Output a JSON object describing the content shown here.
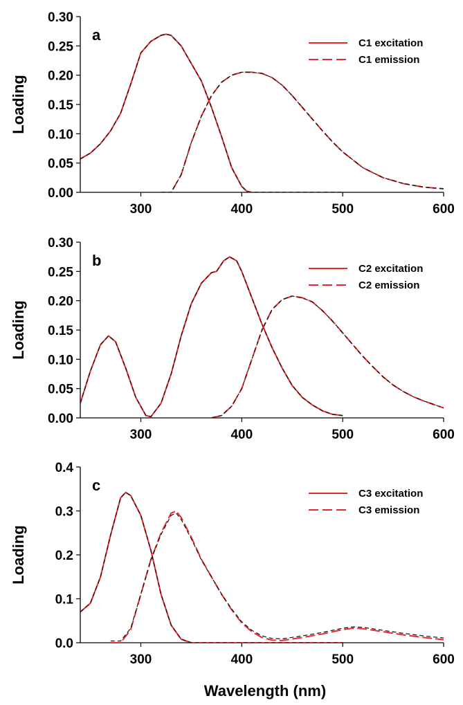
{
  "chart_data": [
    {
      "type": "line",
      "panel_label": "a",
      "ylabel": "Loading",
      "xlabel": "",
      "xlim": [
        240,
        600
      ],
      "ylim": [
        0,
        0.3
      ],
      "xticks": [
        "300",
        "400",
        "500",
        "600"
      ],
      "yticks": [
        "0.00",
        "0.05",
        "0.10",
        "0.15",
        "0.20",
        "0.25",
        "0.30"
      ],
      "legend_position": "top-right",
      "legend": [
        {
          "label": "C1 excitation",
          "style": "solid",
          "color": "#e8282b"
        },
        {
          "label": "C1 emission",
          "style": "dashed",
          "color": "#e8282b"
        }
      ],
      "series": [
        {
          "role": "excitation",
          "color": "#e8282b",
          "points": [
            [
              240,
              0.057
            ],
            [
              250,
              0.067
            ],
            [
              260,
              0.083
            ],
            [
              270,
              0.105
            ],
            [
              280,
              0.135
            ],
            [
              290,
              0.185
            ],
            [
              300,
              0.238
            ],
            [
              310,
              0.258
            ],
            [
              320,
              0.268
            ],
            [
              325,
              0.27
            ],
            [
              330,
              0.268
            ],
            [
              340,
              0.25
            ],
            [
              350,
              0.22
            ],
            [
              360,
              0.19
            ],
            [
              370,
              0.145
            ],
            [
              380,
              0.095
            ],
            [
              390,
              0.042
            ],
            [
              400,
              0.01
            ],
            [
              405,
              0.002
            ],
            [
              410,
              0.0
            ],
            [
              500,
              0.0
            ]
          ]
        },
        {
          "role": "emission",
          "color": "#e8282b",
          "points": [
            [
              320,
              0.0
            ],
            [
              330,
              0.0
            ],
            [
              340,
              0.03
            ],
            [
              350,
              0.085
            ],
            [
              360,
              0.13
            ],
            [
              370,
              0.165
            ],
            [
              380,
              0.188
            ],
            [
              390,
              0.2
            ],
            [
              400,
              0.205
            ],
            [
              410,
              0.205
            ],
            [
              420,
              0.203
            ],
            [
              430,
              0.196
            ],
            [
              440,
              0.183
            ],
            [
              450,
              0.165
            ],
            [
              460,
              0.145
            ],
            [
              470,
              0.125
            ],
            [
              480,
              0.105
            ],
            [
              490,
              0.086
            ],
            [
              500,
              0.069
            ],
            [
              520,
              0.042
            ],
            [
              540,
              0.025
            ],
            [
              560,
              0.015
            ],
            [
              580,
              0.009
            ],
            [
              600,
              0.006
            ]
          ]
        }
      ]
    },
    {
      "type": "line",
      "panel_label": "b",
      "ylabel": "Loading",
      "xlabel": "",
      "xlim": [
        240,
        600
      ],
      "ylim": [
        0,
        0.3
      ],
      "xticks": [
        "300",
        "400",
        "500",
        "600"
      ],
      "yticks": [
        "0.00",
        "0.05",
        "0.10",
        "0.15",
        "0.20",
        "0.25",
        "0.30"
      ],
      "legend_position": "top-right",
      "legend": [
        {
          "label": "C2 excitation",
          "style": "solid",
          "color": "#e8282b"
        },
        {
          "label": "C2 emission",
          "style": "dashed",
          "color": "#e8282b"
        }
      ],
      "series": [
        {
          "role": "excitation",
          "color": "#e8282b",
          "points": [
            [
              240,
              0.025
            ],
            [
              250,
              0.08
            ],
            [
              260,
              0.125
            ],
            [
              268,
              0.14
            ],
            [
              275,
              0.13
            ],
            [
              285,
              0.085
            ],
            [
              295,
              0.035
            ],
            [
              305,
              0.004
            ],
            [
              310,
              0.002
            ],
            [
              320,
              0.025
            ],
            [
              330,
              0.075
            ],
            [
              340,
              0.14
            ],
            [
              350,
              0.195
            ],
            [
              360,
              0.23
            ],
            [
              370,
              0.248
            ],
            [
              375,
              0.25
            ],
            [
              382,
              0.268
            ],
            [
              388,
              0.275
            ],
            [
              395,
              0.268
            ],
            [
              400,
              0.25
            ],
            [
              410,
              0.205
            ],
            [
              420,
              0.16
            ],
            [
              430,
              0.12
            ],
            [
              440,
              0.085
            ],
            [
              450,
              0.055
            ],
            [
              460,
              0.035
            ],
            [
              470,
              0.022
            ],
            [
              480,
              0.012
            ],
            [
              490,
              0.006
            ],
            [
              500,
              0.004
            ]
          ]
        },
        {
          "role": "emission",
          "color": "#e8282b",
          "points": [
            [
              370,
              0.0
            ],
            [
              380,
              0.004
            ],
            [
              390,
              0.02
            ],
            [
              400,
              0.05
            ],
            [
              410,
              0.1
            ],
            [
              420,
              0.15
            ],
            [
              430,
              0.185
            ],
            [
              440,
              0.202
            ],
            [
              450,
              0.208
            ],
            [
              460,
              0.205
            ],
            [
              470,
              0.198
            ],
            [
              480,
              0.183
            ],
            [
              490,
              0.165
            ],
            [
              500,
              0.145
            ],
            [
              510,
              0.125
            ],
            [
              520,
              0.105
            ],
            [
              530,
              0.087
            ],
            [
              540,
              0.07
            ],
            [
              550,
              0.056
            ],
            [
              560,
              0.045
            ],
            [
              570,
              0.036
            ],
            [
              580,
              0.029
            ],
            [
              590,
              0.023
            ],
            [
              600,
              0.017
            ]
          ]
        }
      ]
    },
    {
      "type": "line",
      "panel_label": "c",
      "ylabel": "Loading",
      "xlabel": "Wavelength (nm)",
      "xlim": [
        240,
        600
      ],
      "ylim": [
        0,
        0.4
      ],
      "xticks": [
        "300",
        "400",
        "500",
        "600"
      ],
      "yticks": [
        "0.0",
        "0.1",
        "0.2",
        "0.3",
        "0.4"
      ],
      "legend_position": "top-right",
      "legend": [
        {
          "label": "C3 excitation",
          "style": "solid",
          "color": "#e8282b"
        },
        {
          "label": "C3 emission",
          "style": "dashed",
          "color": "#e8282b"
        }
      ],
      "series": [
        {
          "role": "excitation",
          "color": "#e8282b",
          "points": [
            [
              240,
              0.07
            ],
            [
              250,
              0.09
            ],
            [
              260,
              0.15
            ],
            [
              270,
              0.245
            ],
            [
              280,
              0.33
            ],
            [
              285,
              0.342
            ],
            [
              290,
              0.335
            ],
            [
              300,
              0.29
            ],
            [
              310,
              0.21
            ],
            [
              320,
              0.11
            ],
            [
              330,
              0.04
            ],
            [
              340,
              0.008
            ],
            [
              350,
              0.0
            ],
            [
              400,
              0.0
            ],
            [
              500,
              0.0
            ]
          ]
        },
        {
          "role": "emission",
          "color": "#e8282b",
          "points": [
            [
              270,
              0.0
            ],
            [
              280,
              0.0
            ],
            [
              290,
              0.03
            ],
            [
              300,
              0.11
            ],
            [
              310,
              0.19
            ],
            [
              320,
              0.25
            ],
            [
              330,
              0.295
            ],
            [
              335,
              0.3
            ],
            [
              340,
              0.285
            ],
            [
              350,
              0.24
            ],
            [
              360,
              0.19
            ],
            [
              370,
              0.15
            ],
            [
              380,
              0.11
            ],
            [
              390,
              0.075
            ],
            [
              400,
              0.045
            ],
            [
              410,
              0.025
            ],
            [
              420,
              0.012
            ],
            [
              430,
              0.006
            ],
            [
              440,
              0.005
            ],
            [
              460,
              0.012
            ],
            [
              480,
              0.02
            ],
            [
              500,
              0.03
            ],
            [
              510,
              0.033
            ],
            [
              520,
              0.032
            ],
            [
              540,
              0.025
            ],
            [
              560,
              0.018
            ],
            [
              580,
              0.012
            ],
            [
              600,
              0.007
            ]
          ]
        }
      ]
    }
  ]
}
